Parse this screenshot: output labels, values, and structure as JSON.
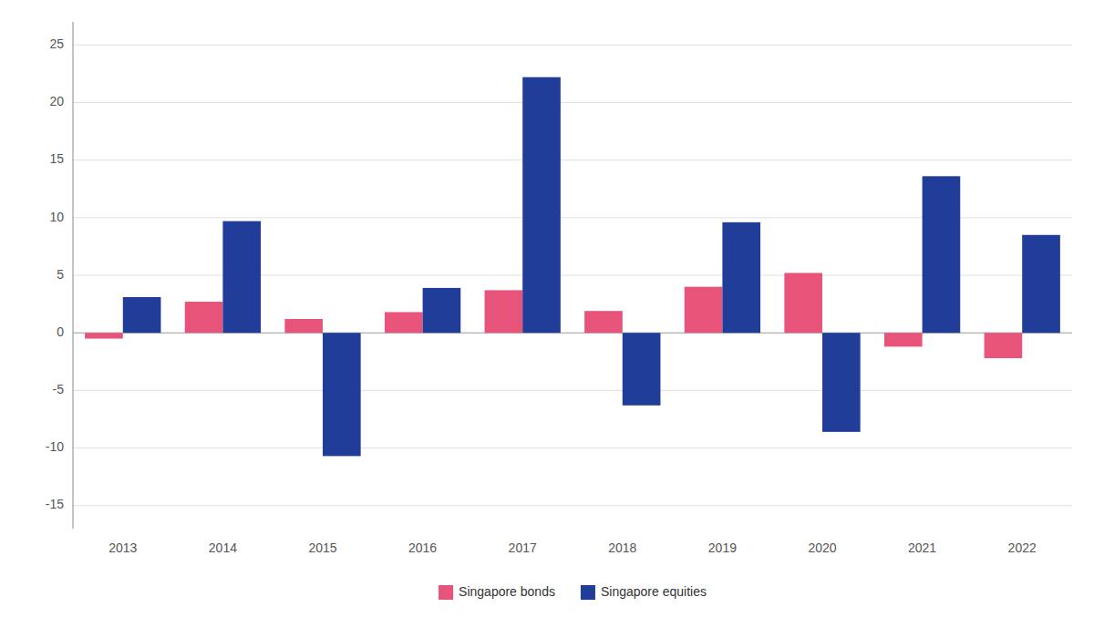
{
  "chart_data": {
    "type": "bar",
    "categories": [
      "2013",
      "2014",
      "2015",
      "2016",
      "2017",
      "2018",
      "2019",
      "2020",
      "2021",
      "2022"
    ],
    "series": [
      {
        "name": "Singapore bonds",
        "color": "#e8537a",
        "values": [
          -0.5,
          2.7,
          1.2,
          1.8,
          3.7,
          1.9,
          4.0,
          5.2,
          -1.2,
          -2.2
        ]
      },
      {
        "name": "Singapore equities",
        "color": "#1f3d99",
        "values": [
          3.1,
          9.7,
          -10.7,
          3.9,
          22.2,
          -6.3,
          9.6,
          -8.6,
          13.6,
          8.5
        ]
      }
    ],
    "ylim": [
      -17,
      27
    ],
    "yticks": [
      -15,
      -10,
      -5,
      0,
      5,
      10,
      15,
      20,
      25
    ],
    "grid": true,
    "legend": "bottom"
  }
}
